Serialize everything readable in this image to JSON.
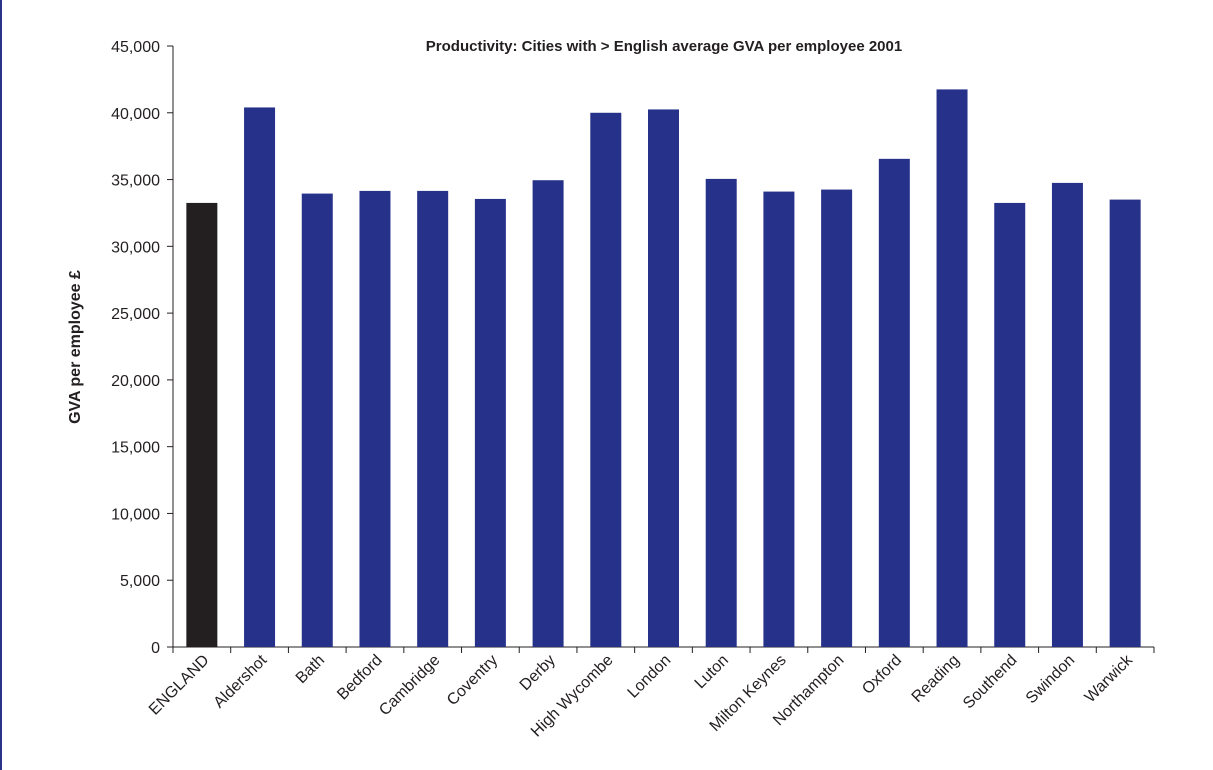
{
  "chart_data": {
    "type": "bar",
    "title": "Productivity: Cities with > English average GVA per employee 2001",
    "xlabel": "",
    "ylabel": "GVA per employee £",
    "ylim": [
      0,
      45000
    ],
    "yticks": [
      0,
      5000,
      10000,
      15000,
      20000,
      25000,
      30000,
      35000,
      40000,
      45000
    ],
    "ytick_labels": [
      "0",
      "5,000",
      "10,000",
      "15,000",
      "20,000",
      "25,000",
      "30,000",
      "35,000",
      "40,000",
      "45,000"
    ],
    "categories": [
      "ENGLAND",
      "Aldershot",
      "Bath",
      "Bedford",
      "Cambridge",
      "Coventry",
      "Derby",
      "High Wycombe",
      "London",
      "Luton",
      "Milton Keynes",
      "Northampton",
      "Oxford",
      "Reading",
      "Southend",
      "Swindon",
      "Warwick"
    ],
    "values": [
      33250,
      40400,
      33950,
      34150,
      34150,
      33550,
      34950,
      40000,
      40250,
      35050,
      34100,
      34250,
      36550,
      41750,
      33250,
      34750,
      33500
    ],
    "grid": false,
    "colors": {
      "highlight": "#231f20",
      "bar": "#26328a",
      "axis": "#231f20",
      "frame": "#2b3388"
    }
  }
}
